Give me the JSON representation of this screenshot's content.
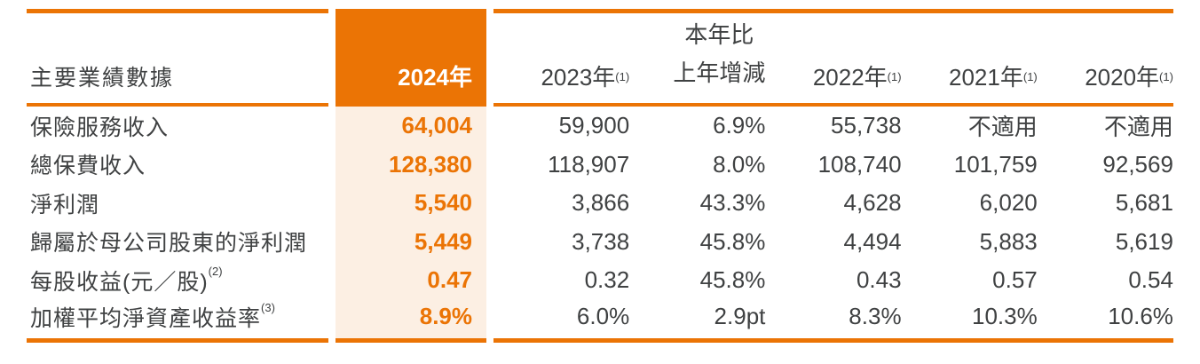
{
  "colors": {
    "accent_orange": "#EB7405",
    "highlight_column_bg": "#FCEFE3",
    "text_dark": "#3F4142",
    "highlight_text": "#FFFFFF"
  },
  "table": {
    "title_header": "主要業績數據",
    "columns": {
      "y2024": {
        "label": "2024年"
      },
      "y2023": {
        "label": "2023年",
        "sup": "(1)"
      },
      "change": {
        "line1": "本年比",
        "line2": "上年增減"
      },
      "y2022": {
        "label": "2022年",
        "sup": "(1)"
      },
      "y2021": {
        "label": "2021年",
        "sup": "(1)"
      },
      "y2020": {
        "label": "2020年",
        "sup": "(1)"
      }
    },
    "rows": [
      {
        "label": "保險服務收入",
        "sup": "",
        "y2024": "64,004",
        "y2023": "59,900",
        "change": "6.9%",
        "y2022": "55,738",
        "y2021": "不適用",
        "y2020": "不適用"
      },
      {
        "label": "總保費收入",
        "sup": "",
        "y2024": "128,380",
        "y2023": "118,907",
        "change": "8.0%",
        "y2022": "108,740",
        "y2021": "101,759",
        "y2020": "92,569"
      },
      {
        "label": "淨利潤",
        "sup": "",
        "y2024": "5,540",
        "y2023": "3,866",
        "change": "43.3%",
        "y2022": "4,628",
        "y2021": "6,020",
        "y2020": "5,681"
      },
      {
        "label": "歸屬於母公司股東的淨利潤",
        "sup": "",
        "y2024": "5,449",
        "y2023": "3,738",
        "change": "45.8%",
        "y2022": "4,494",
        "y2021": "5,883",
        "y2020": "5,619"
      },
      {
        "label": "每股收益(元／股)",
        "sup": "(2)",
        "y2024": "0.47",
        "y2023": "0.32",
        "change": "45.8%",
        "y2022": "0.43",
        "y2021": "0.57",
        "y2020": "0.54"
      },
      {
        "label": "加權平均淨資產收益率",
        "sup": "(3)",
        "y2024": "8.9%",
        "y2023": "6.0%",
        "change": "2.9pt",
        "y2022": "8.3%",
        "y2021": "10.3%",
        "y2020": "10.6%"
      }
    ]
  }
}
